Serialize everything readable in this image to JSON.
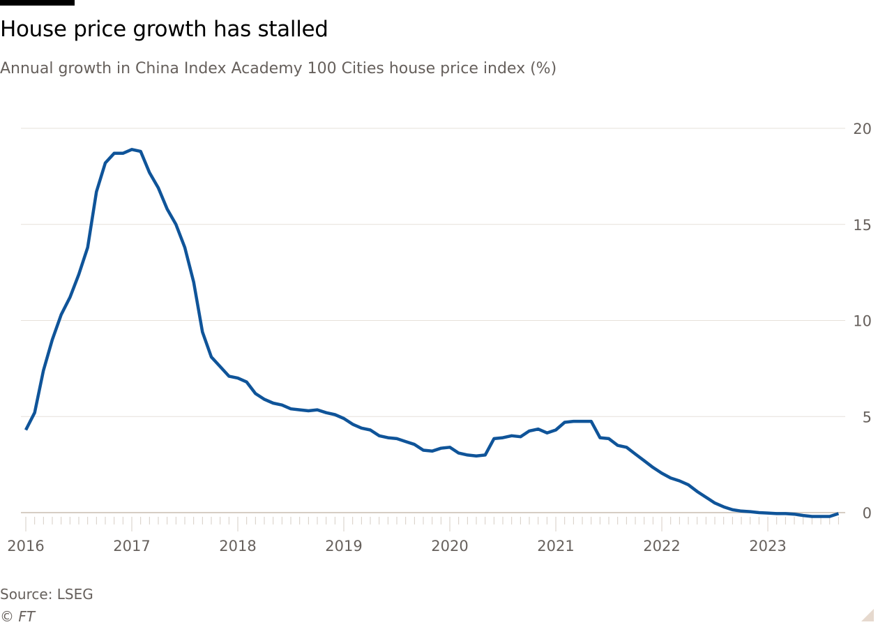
{
  "header": {
    "title": "House price growth has stalled",
    "subtitle": "Annual growth in China Index Academy 100 Cities house price index (%)"
  },
  "footer": {
    "source": "Source: LSEG",
    "copyright": "© FT"
  },
  "colors": {
    "line": "#0f5499",
    "grid": "#e6e0da",
    "text": "#66605c"
  },
  "chart_data": {
    "type": "line",
    "title": "House price growth has stalled",
    "subtitle": "Annual growth in China Index Academy 100 Cities house price index (%)",
    "xlabel": "",
    "ylabel": "%",
    "ylim": [
      0,
      20
    ],
    "yticks": [
      "0",
      "5",
      "10",
      "15",
      "20"
    ],
    "ytick_values": [
      0,
      5,
      10,
      15,
      20
    ],
    "xticks": [
      "2016",
      "2017",
      "2018",
      "2019",
      "2020",
      "2021",
      "2022",
      "2023"
    ],
    "y_axis_side": "right",
    "grid": true,
    "x_start": "2016-01",
    "frequency": "monthly",
    "series": [
      {
        "name": "Annual growth (%)",
        "values": [
          4.3,
          5.2,
          7.4,
          9.0,
          10.3,
          11.2,
          12.4,
          13.8,
          16.7,
          18.2,
          18.7,
          18.7,
          18.9,
          18.8,
          17.7,
          16.9,
          15.8,
          15.0,
          13.8,
          12.0,
          9.4,
          8.1,
          7.6,
          7.1,
          7.0,
          6.8,
          6.2,
          5.9,
          5.7,
          5.6,
          5.4,
          5.35,
          5.3,
          5.35,
          5.2,
          5.1,
          4.9,
          4.6,
          4.4,
          4.3,
          4.0,
          3.9,
          3.85,
          3.7,
          3.55,
          3.25,
          3.2,
          3.35,
          3.4,
          3.1,
          3.0,
          2.95,
          3.0,
          3.85,
          3.9,
          4.0,
          3.95,
          4.25,
          4.35,
          4.15,
          4.3,
          4.7,
          4.75,
          4.75,
          4.75,
          3.9,
          3.85,
          3.5,
          3.4,
          3.05,
          2.7,
          2.35,
          2.05,
          1.8,
          1.65,
          1.45,
          1.1,
          0.8,
          0.5,
          0.3,
          0.15,
          0.08,
          0.05,
          0.0,
          -0.02,
          -0.05,
          -0.05,
          -0.08,
          -0.15,
          -0.2,
          -0.2,
          -0.2,
          -0.05
        ]
      }
    ]
  }
}
